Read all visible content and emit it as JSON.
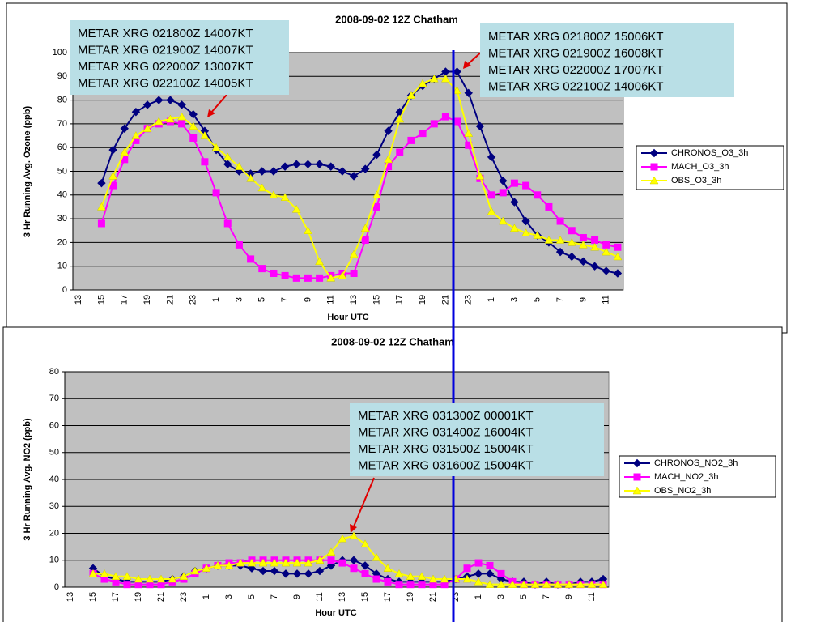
{
  "chart_data": [
    {
      "type": "line",
      "title": "2008-09-02 12Z Chatham",
      "x_label": "Hour UTC",
      "y_label": "3 Hr Running Avg. Ozone (ppb)",
      "categories": [
        "13",
        null,
        "15",
        null,
        "17",
        null,
        "19",
        null,
        "21",
        null,
        "23",
        null,
        "1",
        null,
        "3",
        null,
        "5",
        null,
        "7",
        null,
        "9",
        null,
        "11",
        null,
        "13",
        null,
        "15",
        null,
        "17",
        null,
        "19",
        null,
        "21",
        null,
        "23",
        null,
        "1",
        null,
        "3",
        null,
        "5",
        null,
        "7",
        null,
        "9",
        null,
        "11",
        null
      ],
      "ylim": [
        0,
        100
      ],
      "yticks": [
        0,
        10,
        20,
        30,
        40,
        50,
        60,
        70,
        80,
        90,
        100
      ],
      "grid": true,
      "plot_background": "#c0c0c0",
      "legend": "right",
      "series": [
        {
          "name": "CHRONOS_O3_3h",
          "color": "#000080",
          "marker": "diamond",
          "values": [
            null,
            null,
            45,
            59,
            68,
            75,
            78,
            80,
            80,
            78,
            74,
            67,
            59,
            53,
            50,
            49,
            50,
            50,
            52,
            53,
            53,
            53,
            52,
            50,
            48,
            51,
            57,
            67,
            75,
            82,
            86,
            89,
            92,
            92,
            83,
            69,
            56,
            46,
            37,
            29,
            23,
            20,
            16,
            14,
            12,
            10,
            8,
            7
          ]
        },
        {
          "name": "MACH_O3_3h",
          "color": "#ff00ff",
          "marker": "square",
          "values": [
            null,
            null,
            28,
            44,
            55,
            63,
            68,
            70,
            71,
            70,
            64,
            54,
            41,
            28,
            19,
            13,
            9,
            7,
            6,
            5,
            5,
            5,
            6,
            7,
            7,
            21,
            35,
            52,
            58,
            63,
            66,
            70,
            73,
            71,
            61,
            47,
            40,
            41,
            45,
            44,
            40,
            35,
            29,
            25,
            22,
            21,
            19,
            18
          ]
        },
        {
          "name": "OBS_O3_3h",
          "color": "#ffff00",
          "marker": "triangle",
          "values": [
            null,
            null,
            35,
            48,
            58,
            65,
            68,
            71,
            72,
            73,
            69,
            65,
            60,
            56,
            52,
            47,
            43,
            40,
            39,
            34,
            25,
            12,
            5,
            6,
            15,
            26,
            40,
            55,
            72,
            82,
            87,
            89,
            89,
            84,
            66,
            48,
            33,
            29,
            26,
            24,
            23,
            21,
            21,
            20,
            19,
            18,
            16,
            14
          ]
        }
      ],
      "annotations": [
        {
          "lines": [
            "METAR XRG 021800Z 14007KT",
            "METAR XRG 021900Z 14007KT",
            "METAR XRG 022000Z 13007KT",
            "METAR XRG 022100Z 14005KT"
          ]
        },
        {
          "lines": [
            "METAR XRG 021800Z 15006KT",
            "METAR XRG 021900Z 16008KT",
            "METAR XRG 022000Z 17007KT",
            "METAR XRG 022100Z 14006KT"
          ]
        }
      ]
    },
    {
      "type": "line",
      "title": "2008-09-02 12Z Chatham",
      "x_label": "Hour UTC",
      "y_label": "3 Hr Running Avg. NO2 (ppb)",
      "categories": [
        "13",
        null,
        "15",
        null,
        "17",
        null,
        "19",
        null,
        "21",
        null,
        "23",
        null,
        "1",
        null,
        "3",
        null,
        "5",
        null,
        "7",
        null,
        "9",
        null,
        "11",
        null,
        "13",
        null,
        "15",
        null,
        "17",
        null,
        "19",
        null,
        "21",
        null,
        "23",
        null,
        "1",
        null,
        "3",
        null,
        "5",
        null,
        "7",
        null,
        "9",
        null,
        "11",
        null
      ],
      "ylim": [
        0,
        80
      ],
      "yticks": [
        0,
        10,
        20,
        30,
        40,
        50,
        60,
        70,
        80
      ],
      "grid": true,
      "plot_background": "#c0c0c0",
      "legend": "right",
      "series": [
        {
          "name": "CHRONOS_NO2_3h",
          "color": "#000080",
          "marker": "diamond",
          "values": [
            null,
            null,
            7,
            4,
            3,
            2,
            2,
            2,
            2,
            3,
            4,
            6,
            7,
            8,
            8,
            8,
            7,
            6,
            6,
            5,
            5,
            5,
            6,
            8,
            10,
            10,
            8,
            5,
            3,
            2,
            2,
            2,
            2,
            2,
            3,
            4,
            5,
            5,
            3,
            2,
            2,
            1,
            2,
            1,
            1,
            2,
            2,
            3
          ]
        },
        {
          "name": "MACH_NO2_3h",
          "color": "#ff00ff",
          "marker": "square",
          "values": [
            null,
            null,
            5,
            3,
            2,
            1,
            1,
            1,
            1,
            2,
            3,
            5,
            7,
            8,
            9,
            9,
            10,
            10,
            10,
            10,
            10,
            10,
            10,
            10,
            9,
            7,
            5,
            3,
            2,
            1,
            1,
            1,
            1,
            1,
            3,
            7,
            9,
            8,
            5,
            2,
            1,
            1,
            1,
            1,
            1,
            1,
            1,
            1
          ]
        },
        {
          "name": "OBS_NO2_3h",
          "color": "#ffff00",
          "marker": "triangle",
          "values": [
            null,
            null,
            5,
            5,
            4,
            4,
            3,
            3,
            3,
            3,
            4,
            6,
            7,
            8,
            8,
            9,
            9,
            9,
            9,
            9,
            9,
            9,
            10,
            13,
            18,
            19,
            16,
            11,
            7,
            5,
            4,
            4,
            3,
            3,
            3,
            3,
            2,
            1,
            1,
            1,
            1,
            1,
            1,
            1,
            1,
            1,
            1,
            1
          ]
        }
      ],
      "annotations": [
        {
          "lines": [
            "METAR XRG 031300Z 00001KT",
            "METAR XRG 031400Z 16004KT",
            "METAR XRG 031500Z 15004KT",
            "METAR XRG 031600Z 15004KT"
          ]
        }
      ]
    }
  ]
}
